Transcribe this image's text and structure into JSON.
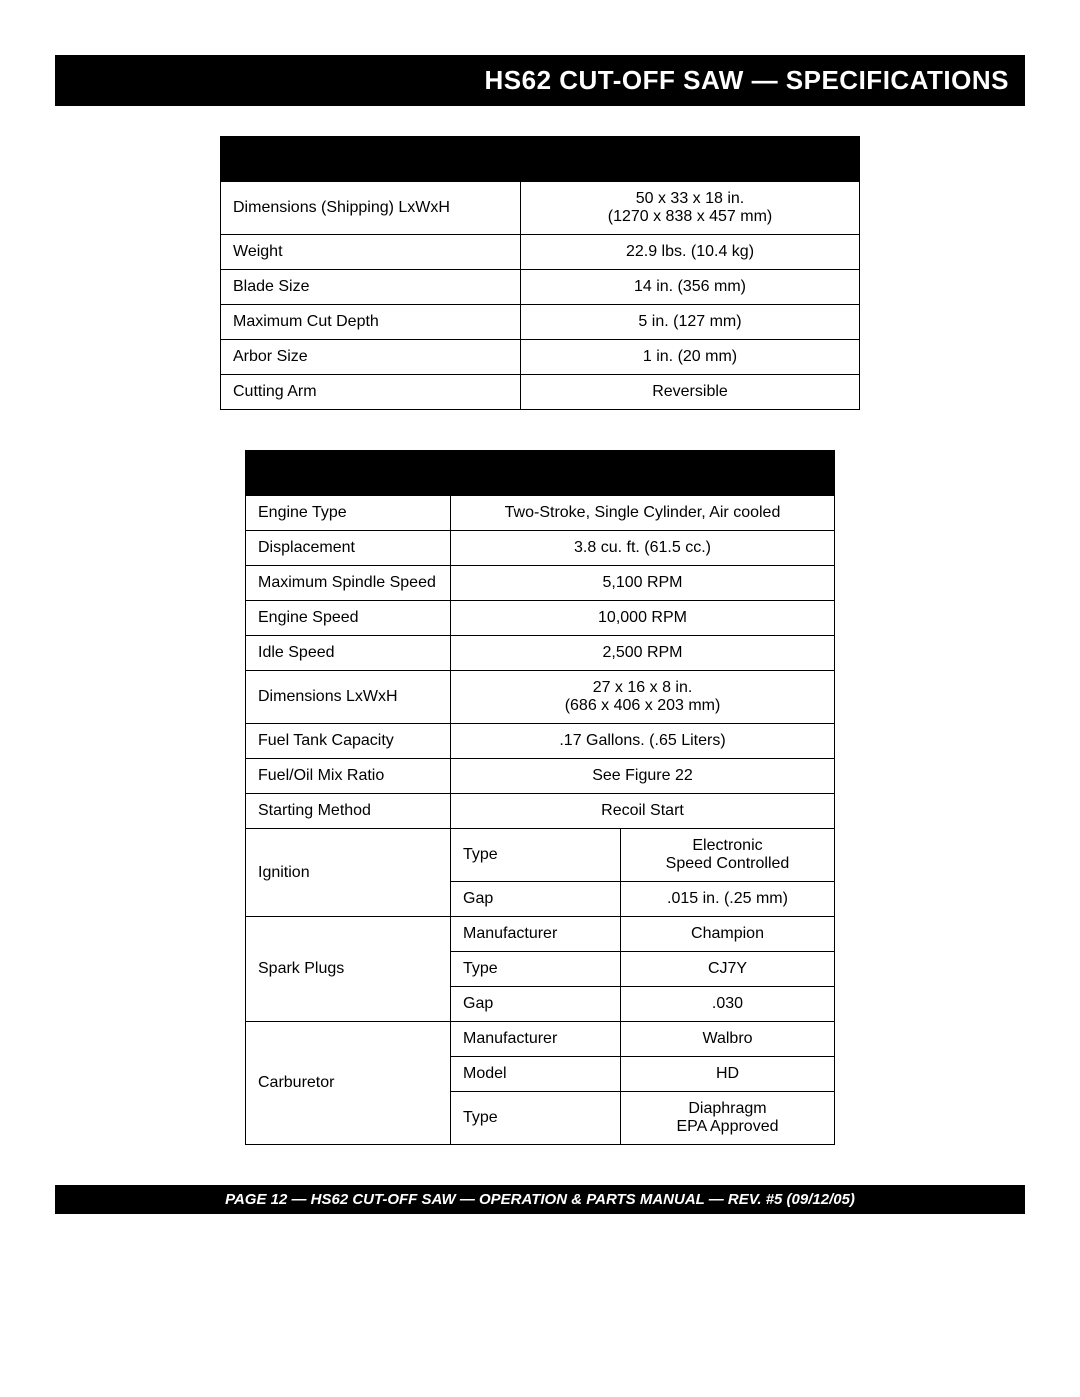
{
  "title_bar": "HS62 CUT-OFF SAW — SPECIFICATIONS",
  "footer": "PAGE 12 — HS62 CUT-OFF SAW  — OPERATION & PARTS MANUAL — REV. #5 (09/12/05)",
  "table1_hdr_height": 45,
  "table1": {
    "rows": [
      {
        "label": "Dimensions (Shipping) LxWxH",
        "value": "50 x 33 x 18 in.\n(1270 x 838 x 457 mm)"
      },
      {
        "label": "Weight",
        "value": "22.9 lbs. (10.4 kg)"
      },
      {
        "label": "Blade Size",
        "value": "14 in. (356 mm)"
      },
      {
        "label": "Maximum Cut Depth",
        "value": "5 in. (127 mm)"
      },
      {
        "label": "Arbor Size",
        "value": "1 in. (20 mm)"
      },
      {
        "label": "Cutting Arm",
        "value": "Reversible"
      }
    ]
  },
  "table2": {
    "simple": [
      {
        "label": "Engine Type",
        "value": "Two-Stroke, Single Cylinder, Air cooled"
      },
      {
        "label": "Displacement",
        "value": "3.8 cu. ft. (61.5 cc.)"
      },
      {
        "label": "Maximum Spindle Speed",
        "value": "5,100 RPM"
      },
      {
        "label": "Engine Speed",
        "value": "10,000  RPM"
      },
      {
        "label": "Idle Speed",
        "value": "2,500  RPM"
      },
      {
        "label": "Dimensions LxWxH",
        "value": "27 x 16 x 8 in.\n(686 x 406 x 203 mm)"
      },
      {
        "label": "Fuel Tank Capacity",
        "value": ".17 Gallons. (.65 Liters)"
      },
      {
        "label": "Fuel/Oil Mix Ratio",
        "value": "See Figure 22"
      },
      {
        "label": "Starting Method",
        "value": "Recoil Start"
      }
    ],
    "groups": [
      {
        "label": "Ignition",
        "subs": [
          {
            "k": "Type",
            "v": "Electronic\nSpeed Controlled"
          },
          {
            "k": "Gap",
            "v": ".015 in. (.25 mm)"
          }
        ]
      },
      {
        "label": "Spark Plugs",
        "subs": [
          {
            "k": "Manufacturer",
            "v": "Champion"
          },
          {
            "k": "Type",
            "v": "CJ7Y"
          },
          {
            "k": "Gap",
            "v": ".030"
          }
        ]
      },
      {
        "label": "Carburetor",
        "subs": [
          {
            "k": "Manufacturer",
            "v": "Walbro"
          },
          {
            "k": "Model",
            "v": "HD"
          },
          {
            "k": "Type",
            "v": "Diaphragm\nEPA Approved"
          }
        ]
      }
    ]
  },
  "colors": {
    "header_bg": "#000000",
    "border": "#000000",
    "page_bg": "#ffffff",
    "text": "#000000",
    "inverse_text": "#ffffff"
  }
}
